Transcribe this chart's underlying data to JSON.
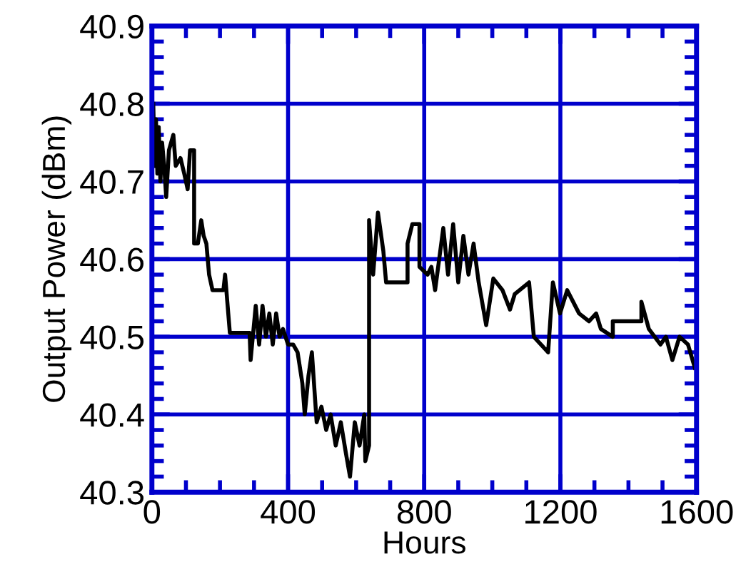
{
  "chart_data": {
    "type": "line",
    "xlabel": "Hours",
    "ylabel": "Output Power (dBm)",
    "xlim": [
      0,
      1600
    ],
    "ylim": [
      40.3,
      40.9
    ],
    "xticks": [
      0,
      {
        "value": 100,
        "label": null
      },
      {
        "value": 200,
        "label": null
      },
      {
        "value": 300,
        "label": null
      },
      400,
      {
        "value": 500,
        "label": null
      },
      {
        "value": 600,
        "label": null
      },
      {
        "value": 700,
        "label": null
      },
      800,
      {
        "value": 900,
        "label": null
      },
      {
        "value": 1000,
        "label": null
      },
      {
        "value": 1100,
        "label": null
      },
      1200,
      {
        "value": 1300,
        "label": null
      },
      {
        "value": 1400,
        "label": null
      },
      {
        "value": 1500,
        "label": null
      },
      1600
    ],
    "yticks": [
      40.3,
      {
        "value": 40.32,
        "label": null
      },
      {
        "value": 40.34,
        "label": null
      },
      {
        "value": 40.36,
        "label": null
      },
      {
        "value": 40.38,
        "label": null
      },
      40.4,
      {
        "value": 40.42,
        "label": null
      },
      {
        "value": 40.44,
        "label": null
      },
      {
        "value": 40.46,
        "label": null
      },
      {
        "value": 40.48,
        "label": null
      },
      40.5,
      {
        "value": 40.52,
        "label": null
      },
      {
        "value": 40.54,
        "label": null
      },
      {
        "value": 40.56,
        "label": null
      },
      {
        "value": 40.58,
        "label": null
      },
      40.6,
      {
        "value": 40.62,
        "label": null
      },
      {
        "value": 40.64,
        "label": null
      },
      {
        "value": 40.66,
        "label": null
      },
      {
        "value": 40.68,
        "label": null
      },
      40.7,
      {
        "value": 40.72,
        "label": null
      },
      {
        "value": 40.74,
        "label": null
      },
      {
        "value": 40.76,
        "label": null
      },
      {
        "value": 40.78,
        "label": null
      },
      40.8,
      {
        "value": 40.82,
        "label": null
      },
      {
        "value": 40.84,
        "label": null
      },
      {
        "value": 40.86,
        "label": null
      },
      {
        "value": 40.88,
        "label": null
      },
      40.9
    ],
    "grid": true,
    "line_style": "solid",
    "marker": "none",
    "series": [
      {
        "color": "#000000",
        "x": [
          4,
          8,
          12,
          16,
          20,
          25,
          30,
          36,
          42,
          50,
          63,
          70,
          84,
          95,
          105,
          112,
          118,
          124,
          124,
          135,
          145,
          152,
          160,
          168,
          178,
          195,
          210,
          215,
          229,
          287,
          290,
          305,
          315,
          325,
          335,
          345,
          355,
          365,
          375,
          385,
          400,
          415,
          428,
          442,
          449,
          460,
          470,
          484,
          498,
          512,
          525,
          540,
          555,
          570,
          582,
          596,
          610,
          624,
          627,
          638,
          638,
          650,
          664,
          680,
          688,
          751,
          751,
          765,
          786,
          786,
          810,
          821,
          832,
          856,
          870,
          885,
          900,
          915,
          930,
          945,
          960,
          968,
          982,
          1003,
          1030,
          1052,
          1066,
          1108,
          1108,
          1122,
          1164,
          1178,
          1199,
          1220,
          1255,
          1284,
          1305,
          1319,
          1354,
          1354,
          1438,
          1438,
          1460,
          1494,
          1510,
          1529,
          1550,
          1575,
          1595
        ],
        "values": [
          40.8,
          40.72,
          40.78,
          40.71,
          40.77,
          40.7,
          40.75,
          40.72,
          40.68,
          40.74,
          40.76,
          40.72,
          40.73,
          40.71,
          40.69,
          40.74,
          40.74,
          40.74,
          40.62,
          40.62,
          40.65,
          40.63,
          40.62,
          40.58,
          40.56,
          40.56,
          40.56,
          40.58,
          40.505,
          40.505,
          40.47,
          40.54,
          40.49,
          40.54,
          40.5,
          40.53,
          40.49,
          40.53,
          40.5,
          40.51,
          40.49,
          40.49,
          40.48,
          40.44,
          40.4,
          40.45,
          40.48,
          40.39,
          40.41,
          40.38,
          40.4,
          40.36,
          40.39,
          40.35,
          40.32,
          40.39,
          40.36,
          40.4,
          40.34,
          40.36,
          40.65,
          40.58,
          40.66,
          40.61,
          40.57,
          40.57,
          40.62,
          40.645,
          40.645,
          40.59,
          40.58,
          40.59,
          40.56,
          40.64,
          40.58,
          40.645,
          40.57,
          40.63,
          40.58,
          40.62,
          40.57,
          40.55,
          40.515,
          40.575,
          40.56,
          40.535,
          40.555,
          40.57,
          40.57,
          40.5,
          40.48,
          40.57,
          40.53,
          40.56,
          40.53,
          40.52,
          40.53,
          40.51,
          40.5,
          40.52,
          40.52,
          40.545,
          40.51,
          40.49,
          40.5,
          40.47,
          40.5,
          40.49,
          40.46
        ]
      }
    ]
  }
}
